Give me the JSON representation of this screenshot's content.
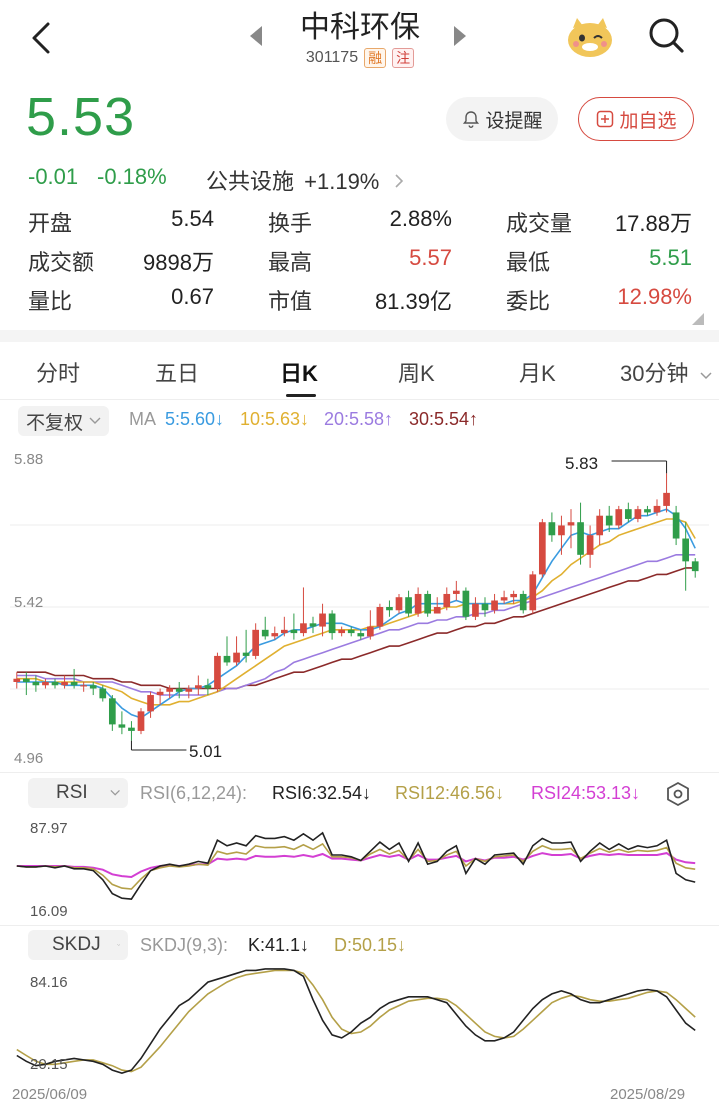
{
  "header": {
    "title": "中科环保",
    "code": "301175",
    "tag_rong": "融",
    "tag_zhu": "注"
  },
  "quote": {
    "price": "5.53",
    "change": "-0.01",
    "change_pct": "-0.18%",
    "sector_name": "公共设施",
    "sector_pct": "+1.19%",
    "alert_label": "设提醒",
    "fav_label": "加自选"
  },
  "stats": [
    {
      "label": "开盘",
      "value": "5.54",
      "color": "normal"
    },
    {
      "label": "换手",
      "value": "2.88%",
      "color": "normal"
    },
    {
      "label": "成交量",
      "value": "17.88万",
      "color": "normal"
    },
    {
      "label": "成交额",
      "value": "9898万",
      "color": "normal"
    },
    {
      "label": "最高",
      "value": "5.57",
      "color": "red"
    },
    {
      "label": "最低",
      "value": "5.51",
      "color": "green"
    },
    {
      "label": "量比",
      "value": "0.67",
      "color": "normal"
    },
    {
      "label": "市值",
      "value": "81.39亿",
      "color": "normal"
    },
    {
      "label": "委比",
      "value": "12.98%",
      "color": "red"
    }
  ],
  "tabs": [
    "分时",
    "五日",
    "日K",
    "周K",
    "月K",
    "30分钟"
  ],
  "active_tab": "日K",
  "kline": {
    "adjust_label": "不复权",
    "ma_label": "MA",
    "ma5": "5:5.60↓",
    "ma10": "10:5.63↓",
    "ma20": "20:5.58↑",
    "ma30": "30:5.54↑",
    "y_top": "5.88",
    "y_mid": "5.42",
    "y_bottom": "4.96",
    "high_mark": "5.83",
    "low_mark": "5.01",
    "date_start": "2025/06/09",
    "date_end": "2025/08/29"
  },
  "rsi": {
    "pill_label": "RSI",
    "params": "RSI(6,12,24):",
    "rsi6": "RSI6:32.54↓",
    "rsi12": "RSI12:46.56↓",
    "rsi24": "RSI24:53.13↓",
    "y_top": "87.97",
    "y_bottom": "16.09"
  },
  "skdj": {
    "pill_label": "SKDJ",
    "params": "SKDJ(9,3):",
    "k": "K:41.1↓",
    "d": "D:50.15↓",
    "y_top": "84.16",
    "y_bottom": "20.15"
  },
  "colors": {
    "up": "#d64a40",
    "down": "#2f9d4a",
    "ma5": "#3a9be0",
    "ma10": "#e0b030",
    "ma20": "#9b7be0",
    "ma30": "#8b2a2a",
    "rsi12": "#b4a048",
    "rsi24": "#d33fd3"
  },
  "chart_data": {
    "type": "candlestick",
    "ylim": [
      4.96,
      5.88
    ],
    "candles": [
      {
        "o": 5.19,
        "c": 5.2,
        "h": 5.22,
        "l": 5.17
      },
      {
        "o": 5.2,
        "c": 5.19,
        "h": 5.22,
        "l": 5.15
      },
      {
        "o": 5.19,
        "c": 5.18,
        "h": 5.21,
        "l": 5.16
      },
      {
        "o": 5.18,
        "c": 5.19,
        "h": 5.2,
        "l": 5.17
      },
      {
        "o": 5.19,
        "c": 5.18,
        "h": 5.2,
        "l": 5.17
      },
      {
        "o": 5.18,
        "c": 5.19,
        "h": 5.21,
        "l": 5.17
      },
      {
        "o": 5.19,
        "c": 5.18,
        "h": 5.23,
        "l": 5.17
      },
      {
        "o": 5.18,
        "c": 5.18,
        "h": 5.19,
        "l": 5.16
      },
      {
        "o": 5.18,
        "c": 5.17,
        "h": 5.19,
        "l": 5.15
      },
      {
        "o": 5.17,
        "c": 5.14,
        "h": 5.18,
        "l": 5.13
      },
      {
        "o": 5.14,
        "c": 5.06,
        "h": 5.15,
        "l": 5.04
      },
      {
        "o": 5.06,
        "c": 5.05,
        "h": 5.1,
        "l": 5.03
      },
      {
        "o": 5.05,
        "c": 5.04,
        "h": 5.07,
        "l": 5.01
      },
      {
        "o": 5.04,
        "c": 5.1,
        "h": 5.11,
        "l": 5.03
      },
      {
        "o": 5.1,
        "c": 5.15,
        "h": 5.16,
        "l": 5.08
      },
      {
        "o": 5.15,
        "c": 5.16,
        "h": 5.17,
        "l": 5.12
      },
      {
        "o": 5.16,
        "c": 5.17,
        "h": 5.18,
        "l": 5.14
      },
      {
        "o": 5.17,
        "c": 5.16,
        "h": 5.19,
        "l": 5.14
      },
      {
        "o": 5.16,
        "c": 5.17,
        "h": 5.18,
        "l": 5.14
      },
      {
        "o": 5.17,
        "c": 5.18,
        "h": 5.21,
        "l": 5.15
      },
      {
        "o": 5.18,
        "c": 5.17,
        "h": 5.2,
        "l": 5.15
      },
      {
        "o": 5.17,
        "c": 5.27,
        "h": 5.28,
        "l": 5.16
      },
      {
        "o": 5.27,
        "c": 5.25,
        "h": 5.33,
        "l": 5.24
      },
      {
        "o": 5.25,
        "c": 5.28,
        "h": 5.33,
        "l": 5.24
      },
      {
        "o": 5.28,
        "c": 5.27,
        "h": 5.35,
        "l": 5.25
      },
      {
        "o": 5.27,
        "c": 5.35,
        "h": 5.37,
        "l": 5.26
      },
      {
        "o": 5.35,
        "c": 5.33,
        "h": 5.39,
        "l": 5.32
      },
      {
        "o": 5.33,
        "c": 5.34,
        "h": 5.36,
        "l": 5.32
      },
      {
        "o": 5.34,
        "c": 5.35,
        "h": 5.39,
        "l": 5.33
      },
      {
        "o": 5.35,
        "c": 5.34,
        "h": 5.4,
        "l": 5.32
      },
      {
        "o": 5.34,
        "c": 5.37,
        "h": 5.48,
        "l": 5.33
      },
      {
        "o": 5.37,
        "c": 5.36,
        "h": 5.39,
        "l": 5.34
      },
      {
        "o": 5.36,
        "c": 5.4,
        "h": 5.43,
        "l": 5.33
      },
      {
        "o": 5.4,
        "c": 5.34,
        "h": 5.41,
        "l": 5.32
      },
      {
        "o": 5.34,
        "c": 5.35,
        "h": 5.36,
        "l": 5.33
      },
      {
        "o": 5.35,
        "c": 5.34,
        "h": 5.36,
        "l": 5.33
      },
      {
        "o": 5.34,
        "c": 5.33,
        "h": 5.35,
        "l": 5.32
      },
      {
        "o": 5.33,
        "c": 5.36,
        "h": 5.41,
        "l": 5.32
      },
      {
        "o": 5.36,
        "c": 5.42,
        "h": 5.43,
        "l": 5.35
      },
      {
        "o": 5.42,
        "c": 5.41,
        "h": 5.44,
        "l": 5.39
      },
      {
        "o": 5.41,
        "c": 5.45,
        "h": 5.46,
        "l": 5.4
      },
      {
        "o": 5.45,
        "c": 5.4,
        "h": 5.47,
        "l": 5.39
      },
      {
        "o": 5.4,
        "c": 5.46,
        "h": 5.48,
        "l": 5.39
      },
      {
        "o": 5.46,
        "c": 5.4,
        "h": 5.47,
        "l": 5.39
      },
      {
        "o": 5.4,
        "c": 5.42,
        "h": 5.45,
        "l": 5.4
      },
      {
        "o": 5.42,
        "c": 5.46,
        "h": 5.48,
        "l": 5.41
      },
      {
        "o": 5.46,
        "c": 5.47,
        "h": 5.5,
        "l": 5.44
      },
      {
        "o": 5.47,
        "c": 5.39,
        "h": 5.48,
        "l": 5.38
      },
      {
        "o": 5.39,
        "c": 5.43,
        "h": 5.45,
        "l": 5.38
      },
      {
        "o": 5.43,
        "c": 5.41,
        "h": 5.45,
        "l": 5.39
      },
      {
        "o": 5.41,
        "c": 5.44,
        "h": 5.46,
        "l": 5.4
      },
      {
        "o": 5.44,
        "c": 5.45,
        "h": 5.47,
        "l": 5.43
      },
      {
        "o": 5.45,
        "c": 5.46,
        "h": 5.47,
        "l": 5.43
      },
      {
        "o": 5.46,
        "c": 5.41,
        "h": 5.47,
        "l": 5.4
      },
      {
        "o": 5.41,
        "c": 5.52,
        "h": 5.53,
        "l": 5.4
      },
      {
        "o": 5.52,
        "c": 5.68,
        "h": 5.69,
        "l": 5.51
      },
      {
        "o": 5.68,
        "c": 5.64,
        "h": 5.71,
        "l": 5.62
      },
      {
        "o": 5.64,
        "c": 5.67,
        "h": 5.7,
        "l": 5.58
      },
      {
        "o": 5.67,
        "c": 5.68,
        "h": 5.72,
        "l": 5.6
      },
      {
        "o": 5.68,
        "c": 5.58,
        "h": 5.74,
        "l": 5.55
      },
      {
        "o": 5.58,
        "c": 5.64,
        "h": 5.67,
        "l": 5.54
      },
      {
        "o": 5.64,
        "c": 5.7,
        "h": 5.72,
        "l": 5.61
      },
      {
        "o": 5.7,
        "c": 5.67,
        "h": 5.73,
        "l": 5.65
      },
      {
        "o": 5.67,
        "c": 5.72,
        "h": 5.73,
        "l": 5.66
      },
      {
        "o": 5.72,
        "c": 5.69,
        "h": 5.74,
        "l": 5.68
      },
      {
        "o": 5.69,
        "c": 5.72,
        "h": 5.73,
        "l": 5.68
      },
      {
        "o": 5.72,
        "c": 5.71,
        "h": 5.73,
        "l": 5.7
      },
      {
        "o": 5.71,
        "c": 5.73,
        "h": 5.75,
        "l": 5.7
      },
      {
        "o": 5.73,
        "c": 5.77,
        "h": 5.83,
        "l": 5.71
      },
      {
        "o": 5.71,
        "c": 5.63,
        "h": 5.73,
        "l": 5.61
      },
      {
        "o": 5.63,
        "c": 5.56,
        "h": 5.68,
        "l": 5.47
      },
      {
        "o": 5.56,
        "c": 5.53,
        "h": 5.57,
        "l": 5.51
      }
    ],
    "ma5": [
      5.19,
      5.19,
      5.19,
      5.19,
      5.19,
      5.18,
      5.18,
      5.18,
      5.18,
      5.17,
      5.14,
      5.11,
      5.09,
      5.08,
      5.1,
      5.12,
      5.14,
      5.16,
      5.17,
      5.17,
      5.18,
      5.2,
      5.22,
      5.24,
      5.27,
      5.3,
      5.31,
      5.32,
      5.34,
      5.35,
      5.35,
      5.36,
      5.37,
      5.37,
      5.37,
      5.36,
      5.35,
      5.35,
      5.36,
      5.38,
      5.4,
      5.41,
      5.43,
      5.43,
      5.43,
      5.43,
      5.44,
      5.43,
      5.43,
      5.43,
      5.43,
      5.43,
      5.44,
      5.44,
      5.46,
      5.51,
      5.56,
      5.6,
      5.64,
      5.65,
      5.64,
      5.65,
      5.66,
      5.66,
      5.68,
      5.7,
      5.7,
      5.71,
      5.72,
      5.7,
      5.66,
      5.6
    ],
    "ma10": [
      5.2,
      5.2,
      5.2,
      5.19,
      5.19,
      5.19,
      5.19,
      5.19,
      5.19,
      5.18,
      5.17,
      5.16,
      5.14,
      5.13,
      5.12,
      5.12,
      5.12,
      5.13,
      5.13,
      5.14,
      5.15,
      5.16,
      5.18,
      5.2,
      5.22,
      5.24,
      5.26,
      5.28,
      5.3,
      5.31,
      5.32,
      5.33,
      5.34,
      5.35,
      5.35,
      5.35,
      5.35,
      5.36,
      5.36,
      5.37,
      5.38,
      5.39,
      5.4,
      5.41,
      5.41,
      5.42,
      5.42,
      5.43,
      5.43,
      5.43,
      5.43,
      5.43,
      5.43,
      5.44,
      5.45,
      5.47,
      5.5,
      5.52,
      5.55,
      5.57,
      5.59,
      5.61,
      5.62,
      5.64,
      5.65,
      5.66,
      5.67,
      5.68,
      5.69,
      5.69,
      5.68,
      5.63
    ],
    "ma20": [
      5.21,
      5.21,
      5.21,
      5.2,
      5.2,
      5.2,
      5.2,
      5.19,
      5.19,
      5.19,
      5.19,
      5.18,
      5.17,
      5.16,
      5.16,
      5.15,
      5.15,
      5.15,
      5.15,
      5.15,
      5.15,
      5.16,
      5.17,
      5.17,
      5.18,
      5.19,
      5.2,
      5.22,
      5.23,
      5.25,
      5.26,
      5.27,
      5.28,
      5.29,
      5.3,
      5.31,
      5.32,
      5.33,
      5.34,
      5.35,
      5.35,
      5.36,
      5.37,
      5.37,
      5.38,
      5.38,
      5.39,
      5.39,
      5.4,
      5.4,
      5.41,
      5.41,
      5.42,
      5.43,
      5.44,
      5.45,
      5.46,
      5.47,
      5.48,
      5.49,
      5.5,
      5.51,
      5.52,
      5.53,
      5.54,
      5.55,
      5.56,
      5.56,
      5.57,
      5.58,
      5.58,
      5.58
    ],
    "ma30": [
      5.22,
      5.22,
      5.22,
      5.22,
      5.21,
      5.21,
      5.21,
      5.21,
      5.2,
      5.2,
      5.2,
      5.19,
      5.19,
      5.18,
      5.18,
      5.18,
      5.17,
      5.17,
      5.17,
      5.17,
      5.17,
      5.17,
      5.17,
      5.17,
      5.18,
      5.18,
      5.19,
      5.2,
      5.21,
      5.22,
      5.22,
      5.23,
      5.24,
      5.25,
      5.26,
      5.26,
      5.27,
      5.28,
      5.29,
      5.3,
      5.3,
      5.31,
      5.32,
      5.33,
      5.34,
      5.34,
      5.35,
      5.36,
      5.36,
      5.37,
      5.37,
      5.38,
      5.39,
      5.39,
      5.4,
      5.41,
      5.42,
      5.43,
      5.44,
      5.45,
      5.46,
      5.47,
      5.48,
      5.49,
      5.5,
      5.5,
      5.51,
      5.52,
      5.52,
      5.53,
      5.54,
      5.54
    ]
  },
  "rsi_data": {
    "ylim": [
      16.09,
      87.97
    ],
    "rsi6": [
      50,
      49,
      49,
      50,
      48,
      50,
      47,
      47,
      45,
      35,
      20,
      15,
      14,
      30,
      45,
      50,
      52,
      50,
      52,
      55,
      53,
      78,
      72,
      75,
      72,
      83,
      80,
      80,
      82,
      78,
      85,
      78,
      86,
      62,
      62,
      60,
      56,
      66,
      76,
      68,
      75,
      55,
      75,
      52,
      55,
      66,
      72,
      42,
      58,
      52,
      62,
      63,
      64,
      52,
      72,
      80,
      75,
      75,
      76,
      55,
      66,
      75,
      68,
      74,
      68,
      72,
      70,
      72,
      78,
      42,
      35,
      32.54
    ],
    "rsi12": [
      50,
      49,
      49,
      50,
      49,
      50,
      48,
      48,
      47,
      40,
      30,
      26,
      25,
      36,
      45,
      48,
      50,
      49,
      50,
      52,
      51,
      66,
      63,
      65,
      63,
      72,
      70,
      70,
      71,
      68,
      73,
      68,
      74,
      60,
      60,
      59,
      56,
      63,
      68,
      63,
      67,
      56,
      68,
      55,
      56,
      62,
      66,
      50,
      58,
      55,
      60,
      61,
      62,
      55,
      66,
      72,
      68,
      68,
      69,
      58,
      64,
      69,
      65,
      68,
      65,
      67,
      66,
      67,
      70,
      53,
      48,
      46.56
    ],
    "rsi24": [
      50,
      50,
      50,
      50,
      50,
      50,
      49,
      49,
      48,
      46,
      41,
      39,
      38,
      44,
      48,
      50,
      51,
      50,
      51,
      52,
      52,
      58,
      57,
      58,
      57,
      61,
      60,
      60,
      61,
      60,
      62,
      60,
      63,
      58,
      58,
      57,
      56,
      59,
      62,
      60,
      62,
      57,
      62,
      57,
      57,
      59,
      61,
      55,
      58,
      56,
      59,
      59,
      60,
      57,
      61,
      64,
      62,
      62,
      63,
      58,
      61,
      63,
      62,
      63,
      62,
      62,
      62,
      62,
      64,
      57,
      54,
      53.13
    ]
  },
  "skdj_data": {
    "ylim": [
      20.15,
      84.16
    ],
    "k": [
      24,
      20,
      17,
      18,
      20,
      21,
      22,
      21,
      20,
      18,
      14,
      12,
      14,
      22,
      32,
      42,
      50,
      58,
      62,
      68,
      74,
      76,
      78,
      80,
      82,
      82,
      83,
      83,
      83,
      82,
      78,
      62,
      48,
      38,
      36,
      40,
      46,
      50,
      56,
      60,
      62,
      64,
      64,
      64,
      62,
      60,
      52,
      44,
      38,
      34,
      34,
      36,
      40,
      48,
      56,
      62,
      66,
      68,
      66,
      62,
      60,
      60,
      62,
      64,
      66,
      68,
      69,
      68,
      64,
      55,
      46,
      41.1
    ],
    "d": [
      28,
      24,
      20,
      18,
      18,
      19,
      20,
      21,
      21,
      19,
      17,
      14,
      13,
      16,
      23,
      30,
      38,
      46,
      54,
      60,
      66,
      70,
      74,
      77,
      79,
      80,
      81,
      82,
      82,
      82,
      80,
      72,
      62,
      50,
      42,
      39,
      40,
      44,
      50,
      55,
      58,
      61,
      62,
      63,
      63,
      62,
      58,
      52,
      46,
      40,
      37,
      36,
      37,
      42,
      48,
      54,
      60,
      63,
      65,
      64,
      62,
      61,
      61,
      62,
      63,
      65,
      67,
      68,
      67,
      62,
      56,
      50.15
    ]
  }
}
